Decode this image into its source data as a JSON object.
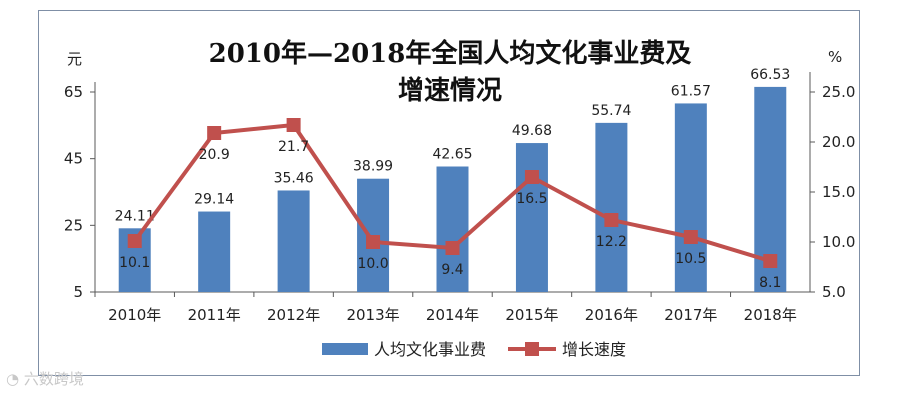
{
  "chart_data": {
    "type": "bar",
    "title": "2010年—2018年全国人均文化事业费及增速情况",
    "title_lines": [
      "2010年—2018年全国人均文化事业费及",
      "增速情况"
    ],
    "categories": [
      "2010年",
      "2011年",
      "2012年",
      "2013年",
      "2014年",
      "2015年",
      "2016年",
      "2017年",
      "2018年"
    ],
    "series": [
      {
        "name": "人均文化事业费",
        "type": "bar",
        "axis": "left",
        "color": "#4f81bd",
        "values": [
          24.11,
          29.14,
          35.46,
          38.99,
          42.65,
          49.68,
          55.74,
          61.57,
          66.53
        ]
      },
      {
        "name": "增长速度",
        "type": "line",
        "axis": "right",
        "color": "#c0504d",
        "values": [
          10.1,
          20.9,
          21.7,
          10.0,
          9.4,
          16.5,
          12.2,
          10.5,
          8.1
        ]
      }
    ],
    "y_left": {
      "unit": "元",
      "ylim": [
        5,
        65
      ],
      "ticks": [
        "5",
        "25",
        "45",
        "65"
      ]
    },
    "y_right": {
      "unit": "%",
      "ylim": [
        5,
        25
      ],
      "ticks": [
        "5.0",
        "10.0",
        "15.0",
        "20.0",
        "25.0"
      ]
    },
    "bar_labels": [
      "24.11",
      "29.14",
      "35.46",
      "38.99",
      "42.65",
      "49.68",
      "55.74",
      "61.57",
      "66.53"
    ],
    "line_labels": [
      "10.1",
      "20.9",
      "21.7",
      "10.0",
      "9.4",
      "16.5",
      "12.2",
      "10.5",
      "8.1"
    ],
    "legend_position": "bottom"
  },
  "watermark": "六数跨境"
}
